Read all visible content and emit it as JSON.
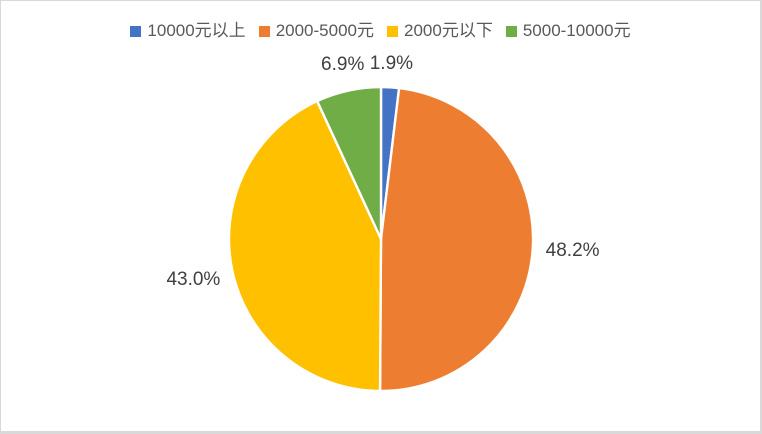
{
  "chart_data": {
    "type": "pie",
    "title": "",
    "categories": [
      "10000元以上",
      "2000-5000元",
      "2000元以下",
      "5000-10000元"
    ],
    "values": [
      1.9,
      48.2,
      43.0,
      6.9
    ],
    "labels": [
      "1.9%",
      "48.2%",
      "43.0%",
      "6.9%"
    ],
    "colors": [
      "#4472c4",
      "#ed7d31",
      "#ffc000",
      "#70ad47"
    ],
    "legend_position": "top",
    "start_angle_deg": 0,
    "direction": "clockwise",
    "slice_border_color": "#ffffff",
    "label_color": "#404040",
    "legend_text_color": "#595959",
    "frame_border_color": "#d9d9d9",
    "background": "#ffffff"
  }
}
